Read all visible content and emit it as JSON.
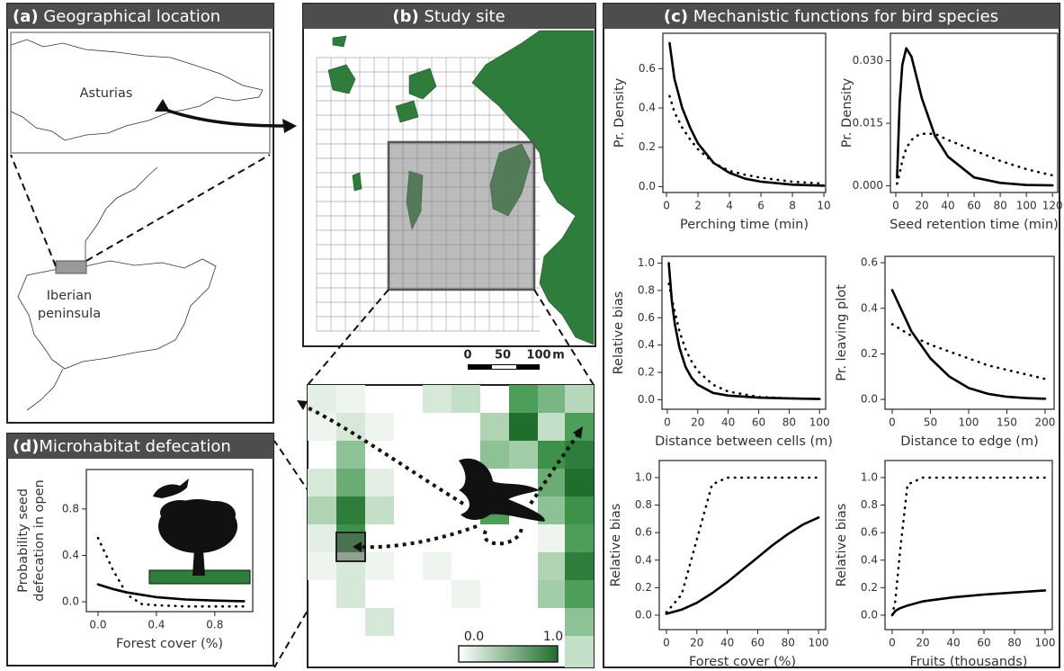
{
  "panels": {
    "a": {
      "letter": "(a)",
      "title": "Geographical location",
      "region": "Asturias",
      "country": [
        "Iberian",
        "peninsula"
      ]
    },
    "b": {
      "letter": "(b)",
      "title": "Study site",
      "scale": [
        "0",
        "50",
        "100",
        "m"
      ],
      "colorbar": [
        "0.0",
        "1.0"
      ]
    },
    "c": {
      "letter": "(c)",
      "title": "Mechanistic functions for bird species"
    },
    "d": {
      "letter": "(d)",
      "title": "Microhabitat defecation"
    }
  },
  "chart_data": [
    {
      "type": "line",
      "xlabel": "Perching time (min)",
      "ylabel": [
        "Pr. Density"
      ],
      "xlim": [
        -0.23,
        10.11
      ],
      "ylim": [
        -0.03,
        0.78
      ],
      "xticks": [
        0,
        2,
        4,
        6,
        8,
        10
      ],
      "yticks": [
        {
          "value": 0,
          "label": "0.0"
        },
        0.2,
        0.4,
        0.6
      ],
      "x": [
        0.2,
        0.5,
        1,
        1.5,
        2,
        3,
        4,
        5,
        6,
        8,
        10
      ],
      "series": [
        {
          "color": "#000000",
          "line_style": "solid",
          "values": [
            0.73,
            0.55,
            0.4,
            0.3,
            0.22,
            0.12,
            0.07,
            0.04,
            0.025,
            0.01,
            0.005
          ]
        },
        {
          "color": "#000000",
          "line_style": "dotted",
          "values": [
            0.46,
            0.38,
            0.3,
            0.24,
            0.19,
            0.12,
            0.08,
            0.06,
            0.045,
            0.025,
            0.015
          ]
        }
      ]
    },
    {
      "type": "line",
      "xlabel": "Seed retention time (min)",
      "ylabel": [
        "Pr. Density"
      ],
      "xlim": [
        -4.1,
        124
      ],
      "ylim": [
        -0.0016,
        0.0366
      ],
      "xticks": [
        0,
        20,
        40,
        60,
        80,
        100,
        120
      ],
      "yticks": [
        {
          "value": 0,
          "label": "0.000"
        },
        {
          "value": 0.015,
          "label": "0.015"
        },
        {
          "value": 0.03,
          "label": "0.030"
        }
      ],
      "x": [
        1,
        3,
        5,
        8,
        12,
        16,
        20,
        30,
        40,
        60,
        80,
        100,
        120
      ],
      "series": [
        {
          "color": "#000000",
          "line_style": "solid",
          "values": [
            0.002,
            0.02,
            0.029,
            0.033,
            0.031,
            0.026,
            0.021,
            0.012,
            0.007,
            0.002,
            0.0007,
            0.0002,
            0.0001
          ]
        },
        {
          "color": "#000000",
          "line_style": "dotted",
          "values": [
            0.0005,
            0.003,
            0.006,
            0.009,
            0.011,
            0.012,
            0.0125,
            0.0125,
            0.011,
            0.0085,
            0.006,
            0.004,
            0.0025
          ]
        }
      ]
    },
    {
      "type": "line",
      "xlabel": "Distance between cells (m)",
      "ylabel": [
        "Relative bias"
      ],
      "xlim": [
        -3.5,
        104
      ],
      "ylim": [
        -0.07,
        1.05
      ],
      "xticks": [
        0,
        20,
        40,
        60,
        80,
        100
      ],
      "yticks": [
        {
          "value": 0,
          "label": "0.0"
        },
        0.2,
        0.4,
        0.6,
        0.8,
        {
          "value": 1,
          "label": "1.0"
        }
      ],
      "x": [
        1,
        3,
        5,
        8,
        12,
        16,
        20,
        30,
        40,
        60,
        80,
        100
      ],
      "series": [
        {
          "color": "#000000",
          "line_style": "solid",
          "values": [
            1.0,
            0.72,
            0.55,
            0.38,
            0.24,
            0.16,
            0.11,
            0.05,
            0.03,
            0.015,
            0.01,
            0.005
          ]
        },
        {
          "color": "#000000",
          "line_style": "dotted",
          "values": [
            0.85,
            0.74,
            0.64,
            0.5,
            0.37,
            0.28,
            0.21,
            0.11,
            0.06,
            0.02,
            0.01,
            0.005
          ]
        }
      ]
    },
    {
      "type": "line",
      "xlabel": "Distance to edge (m)",
      "ylabel": [
        "Pr. leaving plot"
      ],
      "xlim": [
        -9.4,
        211.8
      ],
      "ylim": [
        -0.043,
        0.628
      ],
      "xticks": [
        0,
        50,
        100,
        150,
        200
      ],
      "yticks": [
        {
          "value": 0,
          "label": "0.0"
        },
        0.2,
        0.4,
        0.6
      ],
      "x": [
        0,
        25,
        50,
        75,
        100,
        125,
        150,
        175,
        200
      ],
      "series": [
        {
          "color": "#000000",
          "line_style": "solid",
          "values": [
            0.48,
            0.3,
            0.18,
            0.1,
            0.05,
            0.025,
            0.012,
            0.006,
            0.003
          ]
        },
        {
          "color": "#000000",
          "line_style": "dotted",
          "values": [
            0.33,
            0.28,
            0.24,
            0.21,
            0.18,
            0.15,
            0.13,
            0.11,
            0.09
          ]
        }
      ]
    },
    {
      "type": "line",
      "xlabel": "Forest cover (%)",
      "ylabel": [
        "Relative bias"
      ],
      "xlim": [
        -4.7,
        104.7
      ],
      "ylim": [
        -0.105,
        1.124
      ],
      "xticks": [
        0,
        20,
        40,
        60,
        80,
        100
      ],
      "yticks": [
        {
          "value": 0,
          "label": "0.0"
        },
        0.2,
        0.4,
        0.6,
        0.8,
        {
          "value": 1,
          "label": "1.0"
        }
      ],
      "x": [
        0,
        10,
        20,
        30,
        40,
        50,
        60,
        70,
        80,
        90,
        100
      ],
      "series": [
        {
          "color": "#000000",
          "line_style": "solid",
          "values": [
            0.01,
            0.04,
            0.09,
            0.16,
            0.24,
            0.33,
            0.42,
            0.51,
            0.59,
            0.66,
            0.71
          ]
        },
        {
          "color": "#000000",
          "line_style": "dotted",
          "values": [
            0.02,
            0.15,
            0.55,
            0.95,
            1,
            1,
            1,
            1,
            1,
            1,
            1
          ]
        }
      ]
    },
    {
      "type": "line",
      "xlabel": "Fruits (thousands)",
      "ylabel": [
        "Relative bias"
      ],
      "xlim": [
        -4.7,
        104.7
      ],
      "ylim": [
        -0.105,
        1.124
      ],
      "xticks": [
        0,
        20,
        40,
        60,
        80,
        100
      ],
      "yticks": [
        {
          "value": 0,
          "label": "0.0"
        },
        0.2,
        0.4,
        0.6,
        0.8,
        {
          "value": 1,
          "label": "1.0"
        }
      ],
      "x": [
        0,
        2,
        5,
        10,
        20,
        40,
        60,
        80,
        100
      ],
      "series": [
        {
          "color": "#000000",
          "line_style": "solid",
          "values": [
            0,
            0.03,
            0.05,
            0.07,
            0.1,
            0.13,
            0.15,
            0.165,
            0.18
          ]
        },
        {
          "color": "#000000",
          "line_style": "dotted",
          "values": [
            0,
            0.1,
            0.45,
            0.95,
            1,
            1,
            1,
            1,
            1
          ]
        }
      ]
    },
    {
      "type": "line",
      "xlabel": "Forest cover (%)",
      "ylabel": [
        "Probability seed",
        "defecation in open"
      ],
      "xlim": [
        -0.08,
        1.06
      ],
      "ylim": [
        -0.085,
        1.14
      ],
      "xticks": [
        {
          "value": 0,
          "label": "0.0"
        },
        0.4,
        0.8
      ],
      "yticks": [
        {
          "value": 0,
          "label": "0.0"
        },
        0.4,
        0.8
      ],
      "x": [
        0,
        0.1,
        0.2,
        0.3,
        0.4,
        0.6,
        0.8,
        1.0
      ],
      "series": [
        {
          "color": "#000000",
          "line_style": "solid",
          "values": [
            0.15,
            0.11,
            0.08,
            0.06,
            0.04,
            0.02,
            0.01,
            0.005
          ]
        },
        {
          "color": "#000000",
          "line_style": "dotted",
          "values": [
            0.55,
            0.28,
            0.06,
            -0.02,
            -0.03,
            -0.04,
            -0.04,
            -0.04
          ]
        }
      ]
    }
  ]
}
